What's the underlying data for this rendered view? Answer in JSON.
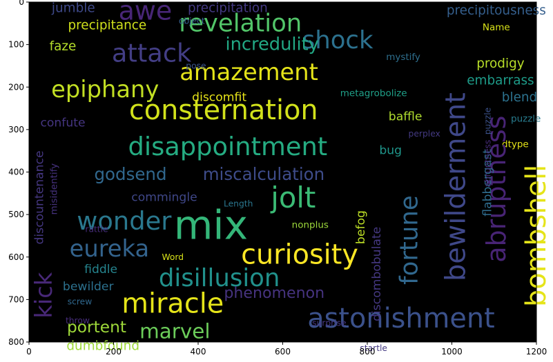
{
  "chart_data": {
    "type": "wordcloud",
    "title": "",
    "xlabel": "",
    "ylabel": "",
    "xlim": [
      0,
      1200
    ],
    "ylim": [
      800,
      0
    ],
    "xticks": [
      0,
      200,
      400,
      600,
      800,
      1000,
      1200
    ],
    "yticks": [
      0,
      100,
      200,
      300,
      400,
      500,
      600,
      700,
      800
    ],
    "grid": false,
    "background": "#000000",
    "colormap": "viridis",
    "words": [
      {
        "text": "awe",
        "x": 275,
        "y": 20,
        "size": 62,
        "color": "#482677",
        "rotate": 0
      },
      {
        "text": "revelation",
        "x": 500,
        "y": 50,
        "size": 58,
        "color": "#52c569",
        "rotate": 0
      },
      {
        "text": "shock",
        "x": 730,
        "y": 90,
        "size": 58,
        "color": "#2c718e",
        "rotate": 0
      },
      {
        "text": "attack",
        "x": 290,
        "y": 120,
        "size": 60,
        "color": "#433e85",
        "rotate": 0
      },
      {
        "text": "incredulity",
        "x": 575,
        "y": 100,
        "size": 42,
        "color": "#22a884",
        "rotate": 0
      },
      {
        "text": "amazement",
        "x": 520,
        "y": 165,
        "size": 55,
        "color": "#e5e419",
        "rotate": 0
      },
      {
        "text": "epiphany",
        "x": 180,
        "y": 205,
        "size": 55,
        "color": "#c2df23",
        "rotate": 0
      },
      {
        "text": "consternation",
        "x": 460,
        "y": 255,
        "size": 65,
        "color": "#d2e21b",
        "rotate": 0
      },
      {
        "text": "disappointment",
        "x": 470,
        "y": 340,
        "size": 60,
        "color": "#25ac82",
        "rotate": 0
      },
      {
        "text": "godsend",
        "x": 240,
        "y": 405,
        "size": 40,
        "color": "#31688e",
        "rotate": 0
      },
      {
        "text": "miscalculation",
        "x": 555,
        "y": 405,
        "size": 40,
        "color": "#3e4c8a",
        "rotate": 0
      },
      {
        "text": "jolt",
        "x": 625,
        "y": 460,
        "size": 68,
        "color": "#3bbb75",
        "rotate": 0
      },
      {
        "text": "wonder",
        "x": 225,
        "y": 515,
        "size": 60,
        "color": "#2a788e",
        "rotate": 0
      },
      {
        "text": "mix",
        "x": 430,
        "y": 525,
        "size": 95,
        "color": "#34b679",
        "rotate": 0
      },
      {
        "text": "eureka",
        "x": 190,
        "y": 580,
        "size": 55,
        "color": "#33638d",
        "rotate": 0
      },
      {
        "text": "curiosity",
        "x": 640,
        "y": 595,
        "size": 65,
        "color": "#fde725",
        "rotate": 0
      },
      {
        "text": "disillusion",
        "x": 450,
        "y": 650,
        "size": 58,
        "color": "#21918c",
        "rotate": 0
      },
      {
        "text": "miracle",
        "x": 340,
        "y": 710,
        "size": 65,
        "color": "#e5e419",
        "rotate": 0
      },
      {
        "text": "phenomenon",
        "x": 580,
        "y": 685,
        "size": 36,
        "color": "#46337f",
        "rotate": 0
      },
      {
        "text": "astonishment",
        "x": 880,
        "y": 745,
        "size": 65,
        "color": "#3b518b",
        "rotate": 0
      },
      {
        "text": "marvel",
        "x": 345,
        "y": 775,
        "size": 48,
        "color": "#6ccd5a",
        "rotate": 0
      },
      {
        "text": "portent",
        "x": 160,
        "y": 765,
        "size": 38,
        "color": "#9fda3a",
        "rotate": 0
      },
      {
        "text": "dumbfound",
        "x": 175,
        "y": 810,
        "size": 30,
        "color": "#a0da39",
        "rotate": 0
      },
      {
        "text": "bewilder",
        "x": 140,
        "y": 670,
        "size": 28,
        "color": "#2c718e",
        "rotate": 0
      },
      {
        "text": "fiddle",
        "x": 170,
        "y": 630,
        "size": 28,
        "color": "#25848e",
        "rotate": 0
      },
      {
        "text": "kick",
        "x": 35,
        "y": 690,
        "size": 55,
        "color": "#482878",
        "rotate": -90
      },
      {
        "text": "screw",
        "x": 120,
        "y": 705,
        "size": 20,
        "color": "#30688e",
        "rotate": 0
      },
      {
        "text": "throw",
        "x": 115,
        "y": 750,
        "size": 20,
        "color": "#472d7b",
        "rotate": 0
      },
      {
        "text": "precipitation",
        "x": 470,
        "y": 15,
        "size": 30,
        "color": "#443983",
        "rotate": 0
      },
      {
        "text": "precipitance",
        "x": 185,
        "y": 55,
        "size": 30,
        "color": "#d0e11c",
        "rotate": 0
      },
      {
        "text": "jumble",
        "x": 105,
        "y": 15,
        "size": 30,
        "color": "#3e4989",
        "rotate": 0
      },
      {
        "text": "object",
        "x": 385,
        "y": 45,
        "size": 20,
        "color": "#355f8d",
        "rotate": 0
      },
      {
        "text": "faze",
        "x": 80,
        "y": 105,
        "size": 30,
        "color": "#b5de2b",
        "rotate": 0
      },
      {
        "text": "pose",
        "x": 395,
        "y": 150,
        "size": 20,
        "color": "#3a548c",
        "rotate": 0
      },
      {
        "text": "discomfit",
        "x": 450,
        "y": 225,
        "size": 28,
        "color": "#e7e419",
        "rotate": 0
      },
      {
        "text": "confute",
        "x": 80,
        "y": 285,
        "size": 28,
        "color": "#453581",
        "rotate": 0
      },
      {
        "text": "commingle",
        "x": 320,
        "y": 460,
        "size": 28,
        "color": "#3f4788",
        "rotate": 0
      },
      {
        "text": "Length",
        "x": 495,
        "y": 475,
        "size": 20,
        "color": "#2a768e",
        "rotate": 0
      },
      {
        "text": "Word",
        "x": 340,
        "y": 600,
        "size": 20,
        "color": "#d8e219",
        "rotate": 0
      },
      {
        "text": "rattle",
        "x": 160,
        "y": 535,
        "size": 20,
        "color": "#472d7b",
        "rotate": 0
      },
      {
        "text": "nonplus",
        "x": 665,
        "y": 525,
        "size": 22,
        "color": "#9dd93b",
        "rotate": 0
      },
      {
        "text": "surprise",
        "x": 710,
        "y": 755,
        "size": 20,
        "color": "#453882",
        "rotate": 0
      },
      {
        "text": "startle",
        "x": 815,
        "y": 815,
        "size": 20,
        "color": "#443983",
        "rotate": 0
      },
      {
        "text": "metagrobolize",
        "x": 815,
        "y": 215,
        "size": 22,
        "color": "#1fa088",
        "rotate": 0
      },
      {
        "text": "baffle",
        "x": 890,
        "y": 270,
        "size": 28,
        "color": "#b0dd2f",
        "rotate": 0
      },
      {
        "text": "perplex",
        "x": 935,
        "y": 310,
        "size": 20,
        "color": "#443a83",
        "rotate": 0
      },
      {
        "text": "bug",
        "x": 855,
        "y": 350,
        "size": 28,
        "color": "#1f968b",
        "rotate": 0
      },
      {
        "text": "mystify",
        "x": 885,
        "y": 130,
        "size": 22,
        "color": "#2e6f8e",
        "rotate": 0
      },
      {
        "text": "precipitousness",
        "x": 1105,
        "y": 20,
        "size": 30,
        "color": "#355f8d",
        "rotate": 0
      },
      {
        "text": "Name",
        "x": 1105,
        "y": 60,
        "size": 22,
        "color": "#d8e219",
        "rotate": 0
      },
      {
        "text": "prodigy",
        "x": 1115,
        "y": 145,
        "size": 30,
        "color": "#b8de29",
        "rotate": 0
      },
      {
        "text": "embarrass",
        "x": 1115,
        "y": 185,
        "size": 30,
        "color": "#1e9c89",
        "rotate": 0
      },
      {
        "text": "blend",
        "x": 1160,
        "y": 225,
        "size": 30,
        "color": "#2c728e",
        "rotate": 0
      },
      {
        "text": "puzzle",
        "x": 1175,
        "y": 275,
        "size": 22,
        "color": "#287c8e",
        "rotate": 0
      },
      {
        "text": "dtype",
        "x": 1150,
        "y": 335,
        "size": 22,
        "color": "#e5e419",
        "rotate": 0
      },
      {
        "text": "bewilderment",
        "x": 1010,
        "y": 435,
        "size": 65,
        "color": "#3f4889",
        "rotate": -90
      },
      {
        "text": "abruptness",
        "x": 1105,
        "y": 440,
        "size": 62,
        "color": "#482475",
        "rotate": -90
      },
      {
        "text": "bombshell",
        "x": 1200,
        "y": 550,
        "size": 65,
        "color": "#e5e419",
        "rotate": -90
      },
      {
        "text": "fortune",
        "x": 900,
        "y": 560,
        "size": 58,
        "color": "#31688e",
        "rotate": -90
      },
      {
        "text": "flabbergast",
        "x": 1085,
        "y": 425,
        "size": 28,
        "color": "#2f6c8e",
        "rotate": -90
      },
      {
        "text": "discombobulate",
        "x": 823,
        "y": 640,
        "size": 28,
        "color": "#453882",
        "rotate": -90
      },
      {
        "text": "befog",
        "x": 785,
        "y": 530,
        "size": 28,
        "color": "#bddf26",
        "rotate": -90
      },
      {
        "text": "discountenance",
        "x": 25,
        "y": 460,
        "size": 28,
        "color": "#453781",
        "rotate": -90
      },
      {
        "text": "misidentify",
        "x": 60,
        "y": 440,
        "size": 22,
        "color": "#46327e",
        "rotate": -90
      },
      {
        "text": "abruptness",
        "x": 1085,
        "y": 380,
        "size": 20,
        "color": "#472c7a",
        "rotate": -90
      },
      {
        "text": "puzzle",
        "x": 1085,
        "y": 280,
        "size": 20,
        "color": "#3b528b",
        "rotate": -90
      }
    ]
  }
}
